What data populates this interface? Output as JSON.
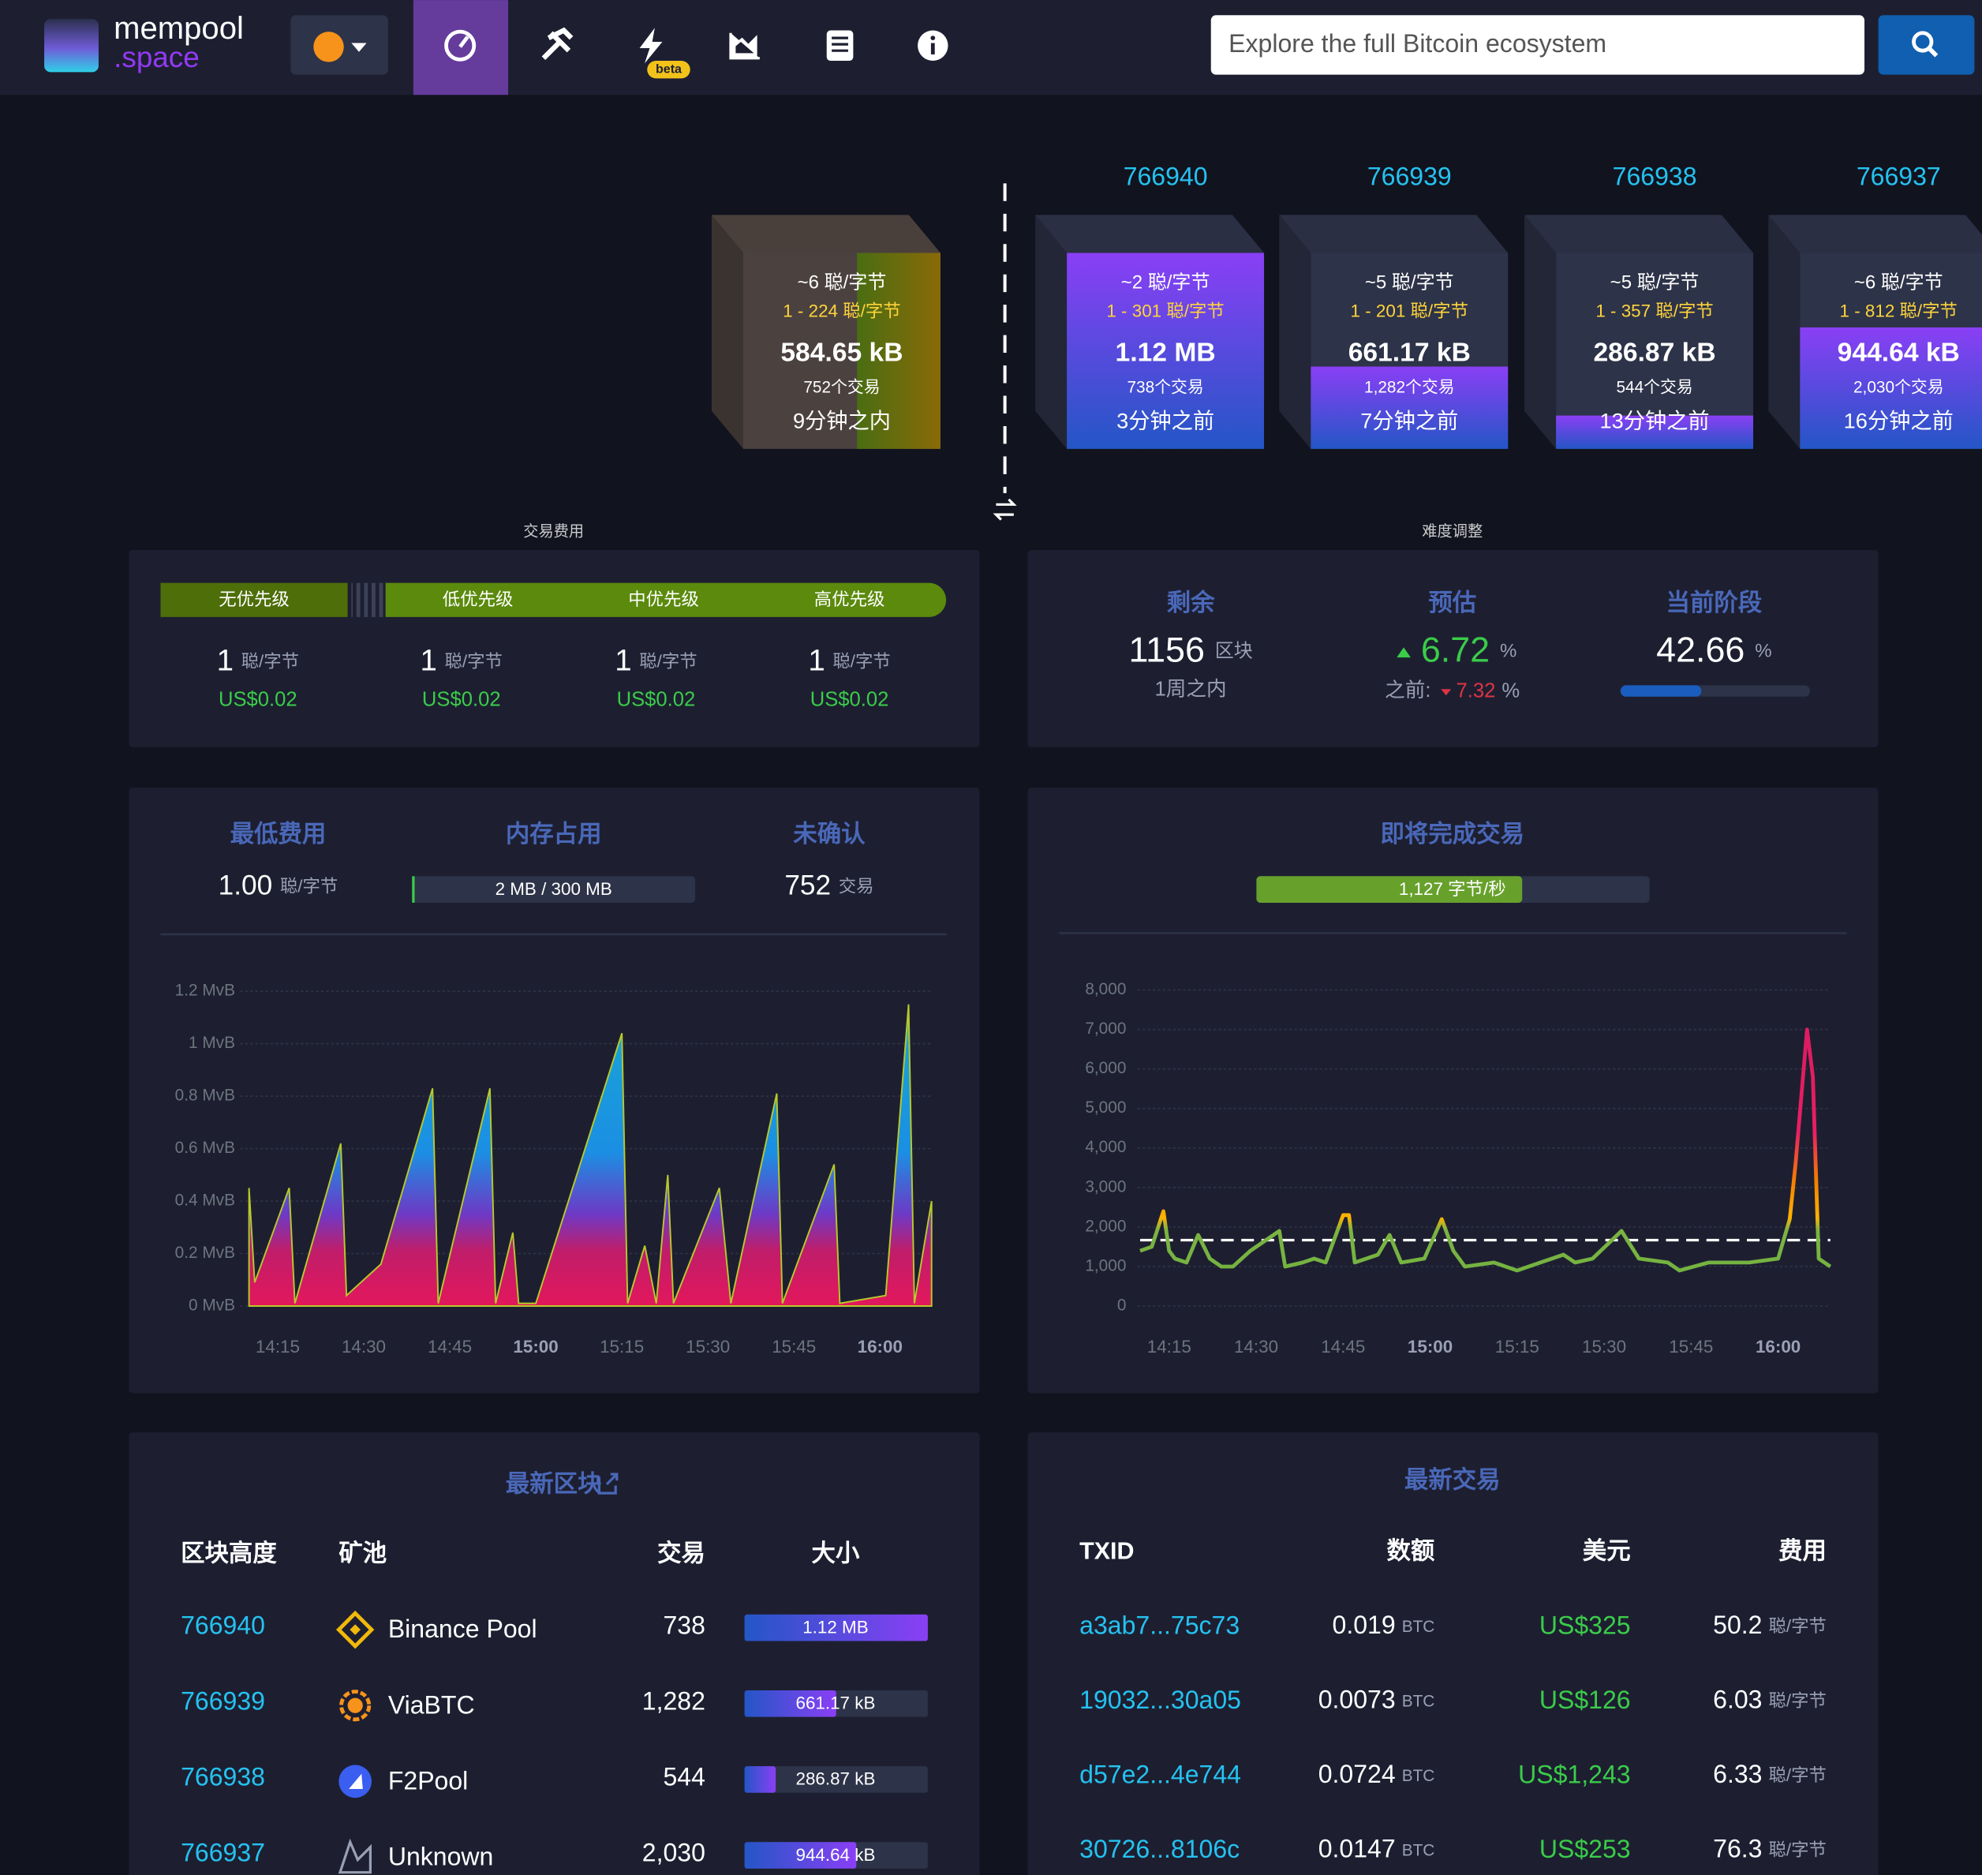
{
  "header": {
    "logo_top": "mempool",
    "logo_bottom": ".space",
    "beta": "beta",
    "search_placeholder": "Explore the full Bitcoin ecosystem"
  },
  "mempool_block": {
    "fee": "~6 聪/字节",
    "range": "1 - 224 聪/字节",
    "size": "584.65 kB",
    "txs": "752个交易",
    "time": "9分钟之内"
  },
  "blocks": [
    {
      "height": "766940",
      "fee": "~2 聪/字节",
      "range": "1 - 301 聪/字节",
      "size": "1.12 MB",
      "txs": "738个交易",
      "time": "3分钟之前"
    },
    {
      "height": "766939",
      "fee": "~5 聪/字节",
      "range": "1 - 201 聪/字节",
      "size": "661.17 kB",
      "txs": "1,282个交易",
      "time": "7分钟之前"
    },
    {
      "height": "766938",
      "fee": "~5 聪/字节",
      "range": "1 - 357 聪/字节",
      "size": "286.87 kB",
      "txs": "544个交易",
      "time": "13分钟之前"
    },
    {
      "height": "766937",
      "fee": "~6 聪/字节",
      "range": "1 - 812 聪/字节",
      "size": "944.64 kB",
      "txs": "2,030个交易",
      "time": "16分钟之前"
    }
  ],
  "fees": {
    "title": "交易费用",
    "priorities": [
      {
        "name": "无优先级",
        "value": "1",
        "unit": "聪/字节",
        "usd": "US$0.02"
      },
      {
        "name": "低优先级",
        "value": "1",
        "unit": "聪/字节",
        "usd": "US$0.02"
      },
      {
        "name": "中优先级",
        "value": "1",
        "unit": "聪/字节",
        "usd": "US$0.02"
      },
      {
        "name": "高优先级",
        "value": "1",
        "unit": "聪/字节",
        "usd": "US$0.02"
      }
    ]
  },
  "difficulty": {
    "title": "难度调整",
    "remaining": {
      "label": "剩余",
      "value": "1156",
      "unit": "区块",
      "sub": "1周之内"
    },
    "estimate": {
      "label": "预估",
      "value": "6.72",
      "unit": "%",
      "prev_label": "之前:",
      "prev_value": "7.32",
      "prev_unit": "%"
    },
    "progress": {
      "label": "当前阶段",
      "value": 42.66,
      "unit": "%"
    }
  },
  "mempool_stats": {
    "min_fee": {
      "label": "最低费用",
      "value": "1.00",
      "unit": "聪/字节"
    },
    "memory": {
      "label": "内存占用",
      "value": "2 MB / 300 MB"
    },
    "unconfirmed": {
      "label": "未确认",
      "value": "752",
      "unit": "交易"
    },
    "incoming": {
      "label": "即将完成交易",
      "value": 1127,
      "value_label": "1,127 字节/秒"
    }
  },
  "charts": [
    {
      "type": "area",
      "x": [
        "14:10",
        "14:11",
        "14:17",
        "14:18",
        "14:26",
        "14:27",
        "14:33",
        "14:42",
        "14:43",
        "14:52",
        "14:53",
        "14:56",
        "14:57",
        "15:00",
        "15:15",
        "15:16",
        "15:19",
        "15:21",
        "15:23",
        "15:24",
        "15:32",
        "15:34",
        "15:42",
        "15:43",
        "15:52",
        "15:53",
        "16:01",
        "16:05",
        "16:06",
        "16:09"
      ],
      "values": [
        0.45,
        0.09,
        0.45,
        0.01,
        0.62,
        0.04,
        0.16,
        0.83,
        0.01,
        0.83,
        0.01,
        0.28,
        0.01,
        0.01,
        1.04,
        0.01,
        0.23,
        0.01,
        0.5,
        0.01,
        0.45,
        0.01,
        0.81,
        0.01,
        0.54,
        0.01,
        0.04,
        1.15,
        0.01,
        0.4
      ],
      "xlim": [
        "14:10",
        "16:09"
      ],
      "xticks": [
        "14:15",
        "14:30",
        "14:45",
        "15:00",
        "15:15",
        "15:30",
        "15:45",
        "16:00"
      ],
      "ylim": [
        0,
        1.2
      ],
      "yticks": [
        {
          "value": 0,
          "label": "0 MvB"
        },
        {
          "value": 0.2,
          "label": "0.2 MvB"
        },
        {
          "value": 0.4,
          "label": "0.4 MvB"
        },
        {
          "value": 0.6,
          "label": "0.6 MvB"
        },
        {
          "value": 0.8,
          "label": "0.8 MvB"
        },
        {
          "value": 1,
          "label": "1 MvB"
        },
        {
          "value": 1.2,
          "label": "1.2 MvB"
        }
      ],
      "grid": true
    },
    {
      "type": "line",
      "x": [
        "14:10",
        "14:12",
        "14:14",
        "14:15",
        "14:16",
        "14:18",
        "14:20",
        "14:22",
        "14:24",
        "14:26",
        "14:29",
        "14:34",
        "14:35",
        "14:38",
        "14:40",
        "14:42",
        "14:45",
        "14:46",
        "14:47",
        "14:49",
        "14:51",
        "14:53",
        "14:55",
        "14:59",
        "15:02",
        "15:04",
        "15:06",
        "15:11",
        "15:15",
        "15:19",
        "15:23",
        "15:25",
        "15:28",
        "15:33",
        "15:36",
        "15:41",
        "15:43",
        "15:48",
        "15:55",
        "16:00",
        "16:02",
        "16:03",
        "16:05",
        "16:06",
        "16:07",
        "16:09"
      ],
      "values": [
        1400,
        1500,
        2400,
        1400,
        1200,
        1100,
        1800,
        1200,
        1000,
        1000,
        1400,
        1900,
        1000,
        1100,
        1200,
        1100,
        2300,
        2300,
        1100,
        1200,
        1300,
        1800,
        1100,
        1200,
        2200,
        1400,
        1000,
        1100,
        900,
        1100,
        1300,
        1100,
        1200,
        1900,
        1200,
        1100,
        900,
        1100,
        1100,
        1200,
        2200,
        3600,
        7000,
        5800,
        1200,
        1000
      ],
      "xlim": [
        "14:10",
        "16:09"
      ],
      "xticks": [
        "14:15",
        "14:30",
        "14:45",
        "15:00",
        "15:15",
        "15:30",
        "15:45",
        "16:00"
      ],
      "ylim": [
        0,
        8000
      ],
      "yticks": [
        0,
        {
          "value": 1000,
          "label": "1,000"
        },
        {
          "value": 2000,
          "label": "2,000"
        },
        {
          "value": 3000,
          "label": "3,000"
        },
        {
          "value": 4000,
          "label": "4,000"
        },
        {
          "value": 5000,
          "label": "5,000"
        },
        {
          "value": 6000,
          "label": "6,000"
        },
        {
          "value": 7000,
          "label": "7,000"
        },
        {
          "value": 8000,
          "label": "8,000"
        }
      ],
      "reference_line": 1667,
      "grid": true
    }
  ],
  "latest_blocks": {
    "title": "最新区块",
    "headers": [
      "区块高度",
      "矿池",
      "交易",
      "大小"
    ],
    "rows": [
      [
        "766940",
        "Binance Pool",
        "738",
        "1.12 MB"
      ],
      [
        "766939",
        "ViaBTC",
        "1,282",
        "661.17 kB"
      ],
      [
        "766938",
        "F2Pool",
        "544",
        "286.87 kB"
      ],
      [
        "766937",
        "Unknown",
        "2,030",
        "944.64 kB"
      ]
    ]
  },
  "latest_transactions": {
    "title": "最新交易",
    "headers": [
      "TXID",
      "数额",
      "美元",
      "费用"
    ],
    "rows": [
      {
        "txid": "a3ab7...75c73",
        "amount": "0.019",
        "amount_unit": "BTC",
        "usd": "US$325",
        "fee": "50.2",
        "fee_unit": "聪/字节"
      },
      {
        "txid": "19032...30a05",
        "amount": "0.0073",
        "amount_unit": "BTC",
        "usd": "US$126",
        "fee": "6.03",
        "fee_unit": "聪/字节"
      },
      {
        "txid": "d57e2...4e744",
        "amount": "0.0724",
        "amount_unit": "BTC",
        "usd": "US$1,243",
        "fee": "6.33",
        "fee_unit": "聪/字节"
      },
      {
        "txid": "30726...8106c",
        "amount": "0.0147",
        "amount_unit": "BTC",
        "usd": "US$253",
        "fee": "76.3",
        "fee_unit": "聪/字节"
      }
    ]
  }
}
